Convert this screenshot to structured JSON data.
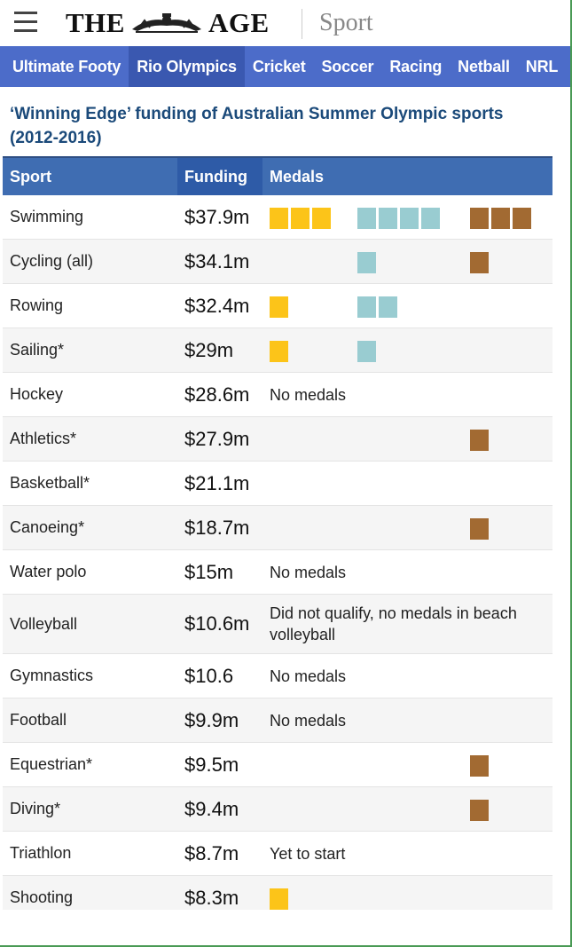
{
  "masthead": {
    "logo_left": "THE",
    "logo_right": "AGE",
    "section": "Sport",
    "menu_icon": "hamburger-menu-icon"
  },
  "nav": {
    "items": [
      "Ultimate Footy",
      "Rio Olympics",
      "Cricket",
      "Soccer",
      "Racing",
      "Netball",
      "NRL"
    ],
    "active": "Rio Olympics"
  },
  "chart": {
    "title": "‘Winning Edge’ funding of Australian Summer Olympic sports (2012-2016)",
    "headers": {
      "sport": "Sport",
      "funding": "Funding",
      "medals": "Medals"
    },
    "colors": {
      "gold": "#fcc419",
      "silver": "#99ccd1",
      "bronze": "#a26a32",
      "header": "#3f6db2",
      "nav": "#4c6cc9"
    },
    "rows": [
      {
        "sport": "Swimming",
        "funding": "$37.9m",
        "gold": 3,
        "silver": 4,
        "bronze": 3,
        "note": ""
      },
      {
        "sport": "Cycling (all)",
        "funding": "$34.1m",
        "gold": 0,
        "silver": 1,
        "bronze": 1,
        "note": ""
      },
      {
        "sport": "Rowing",
        "funding": "$32.4m",
        "gold": 1,
        "silver": 2,
        "bronze": 0,
        "note": ""
      },
      {
        "sport": "Sailing*",
        "funding": "$29m",
        "gold": 1,
        "silver": 1,
        "bronze": 0,
        "note": ""
      },
      {
        "sport": "Hockey",
        "funding": "$28.6m",
        "gold": 0,
        "silver": 0,
        "bronze": 0,
        "note": "No medals"
      },
      {
        "sport": "Athletics*",
        "funding": "$27.9m",
        "gold": 0,
        "silver": 0,
        "bronze": 1,
        "note": ""
      },
      {
        "sport": "Basketball*",
        "funding": "$21.1m",
        "gold": 0,
        "silver": 0,
        "bronze": 0,
        "note": ""
      },
      {
        "sport": "Canoeing*",
        "funding": "$18.7m",
        "gold": 0,
        "silver": 0,
        "bronze": 1,
        "note": ""
      },
      {
        "sport": "Water polo",
        "funding": "$15m",
        "gold": 0,
        "silver": 0,
        "bronze": 0,
        "note": "No medals"
      },
      {
        "sport": "Volleyball",
        "funding": "$10.6m",
        "gold": 0,
        "silver": 0,
        "bronze": 0,
        "note": "Did not qualify, no medals in beach volleyball"
      },
      {
        "sport": "Gymnastics",
        "funding": "$10.6",
        "gold": 0,
        "silver": 0,
        "bronze": 0,
        "note": "No medals"
      },
      {
        "sport": "Football",
        "funding": "$9.9m",
        "gold": 0,
        "silver": 0,
        "bronze": 0,
        "note": "No medals"
      },
      {
        "sport": "Equestrian*",
        "funding": "$9.5m",
        "gold": 0,
        "silver": 0,
        "bronze": 1,
        "note": ""
      },
      {
        "sport": "Diving*",
        "funding": "$9.4m",
        "gold": 0,
        "silver": 0,
        "bronze": 1,
        "note": ""
      },
      {
        "sport": "Triathlon",
        "funding": "$8.7m",
        "gold": 0,
        "silver": 0,
        "bronze": 0,
        "note": "Yet to start"
      },
      {
        "sport": "Shooting",
        "funding": "$8.3m",
        "gold": 1,
        "silver": 0,
        "bronze": 0,
        "note": ""
      }
    ]
  }
}
